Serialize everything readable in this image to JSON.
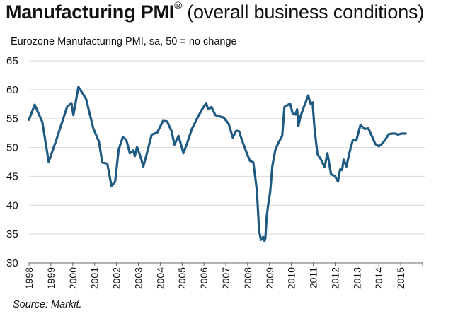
{
  "chart_data": {
    "type": "line",
    "title_bold": "Manufacturing PMI",
    "title_mark": "®",
    "title_rest": " (overall business conditions)",
    "subtitle": "Eurozone Manufacturing PMI, sa, 50 = no change",
    "source": "Source: Markit.",
    "xlabel": "",
    "ylabel": "",
    "ylim": [
      30,
      65
    ],
    "xlim": [
      1998,
      2016
    ],
    "yticks": [
      "65",
      "60",
      "55",
      "50",
      "45",
      "40",
      "35",
      "30"
    ],
    "ytick_values": [
      65,
      60,
      55,
      50,
      45,
      40,
      35,
      30
    ],
    "xticks": [
      "1998",
      "1999",
      "2000",
      "2001",
      "2002",
      "2003",
      "2004",
      "2005",
      "2006",
      "2007",
      "2008",
      "2009",
      "2010",
      "2011",
      "2012",
      "2013",
      "2014",
      "2015"
    ],
    "xtick_values": [
      1998,
      1999,
      2000,
      2001,
      2002,
      2003,
      2004,
      2005,
      2006,
      2007,
      2008,
      2009,
      2010,
      2011,
      2012,
      2013,
      2014,
      2015
    ],
    "grid": true,
    "line_color": "#1f5a82",
    "series": [
      {
        "name": "Eurozone Manufacturing PMI",
        "x": [
          1998.0,
          1998.26,
          1998.61,
          1998.9,
          1999.25,
          1999.74,
          1999.94,
          2000.03,
          2000.26,
          2000.61,
          2000.94,
          2001.2,
          2001.35,
          2001.58,
          2001.77,
          2001.94,
          2002.1,
          2002.29,
          2002.45,
          2002.61,
          2002.77,
          2002.84,
          2002.94,
          2003.1,
          2003.23,
          2003.42,
          2003.61,
          2003.87,
          2004.13,
          2004.32,
          2004.52,
          2004.65,
          2004.84,
          2005.06,
          2005.23,
          2005.45,
          2005.74,
          2005.9,
          2006.1,
          2006.19,
          2006.35,
          2006.52,
          2006.68,
          2006.9,
          2007.13,
          2007.32,
          2007.48,
          2007.61,
          2007.71,
          2007.9,
          2008.1,
          2008.26,
          2008.42,
          2008.52,
          2008.61,
          2008.71,
          2008.77,
          2008.81,
          2008.87,
          2008.94,
          2009.03,
          2009.13,
          2009.26,
          2009.39,
          2009.58,
          2009.68,
          2009.94,
          2010.06,
          2010.19,
          2010.26,
          2010.32,
          2010.42,
          2010.58,
          2010.77,
          2010.87,
          2010.97,
          2011.06,
          2011.19,
          2011.35,
          2011.52,
          2011.65,
          2011.81,
          2012.0,
          2012.13,
          2012.23,
          2012.32,
          2012.39,
          2012.52,
          2012.65,
          2012.81,
          2012.97,
          2013.16,
          2013.35,
          2013.52,
          2013.71,
          2013.84,
          2014.0,
          2014.16,
          2014.32,
          2014.45,
          2014.61,
          2014.77,
          2014.87,
          2015.03,
          2015.23
        ],
        "values": [
          54.8,
          57.4,
          54.4,
          47.5,
          51.3,
          57.0,
          57.7,
          55.6,
          60.5,
          58.4,
          53.3,
          51.0,
          47.4,
          47.2,
          43.3,
          44.1,
          49.6,
          51.8,
          51.3,
          49.0,
          49.5,
          48.5,
          50.1,
          48.4,
          46.7,
          49.4,
          52.2,
          52.6,
          54.6,
          54.5,
          52.8,
          50.5,
          52.0,
          49.0,
          50.7,
          53.2,
          55.4,
          56.5,
          57.7,
          56.6,
          57.0,
          55.6,
          55.4,
          55.2,
          54.1,
          51.7,
          52.9,
          52.8,
          51.6,
          49.6,
          47.7,
          47.4,
          42.6,
          35.6,
          34.0,
          34.5,
          33.8,
          34.3,
          38.0,
          40.1,
          42.3,
          46.8,
          49.5,
          50.7,
          52.0,
          57.0,
          57.6,
          55.9,
          55.7,
          56.6,
          53.7,
          55.4,
          57.1,
          59.0,
          57.6,
          57.8,
          53.2,
          48.9,
          47.9,
          46.6,
          49.0,
          45.4,
          45.0,
          44.1,
          46.2,
          46.1,
          47.9,
          46.7,
          49.0,
          51.3,
          51.2,
          53.9,
          53.2,
          53.3,
          51.7,
          50.6,
          50.2,
          50.7,
          51.5,
          52.3,
          52.4,
          52.4,
          52.2,
          52.4,
          52.4
        ]
      }
    ]
  }
}
